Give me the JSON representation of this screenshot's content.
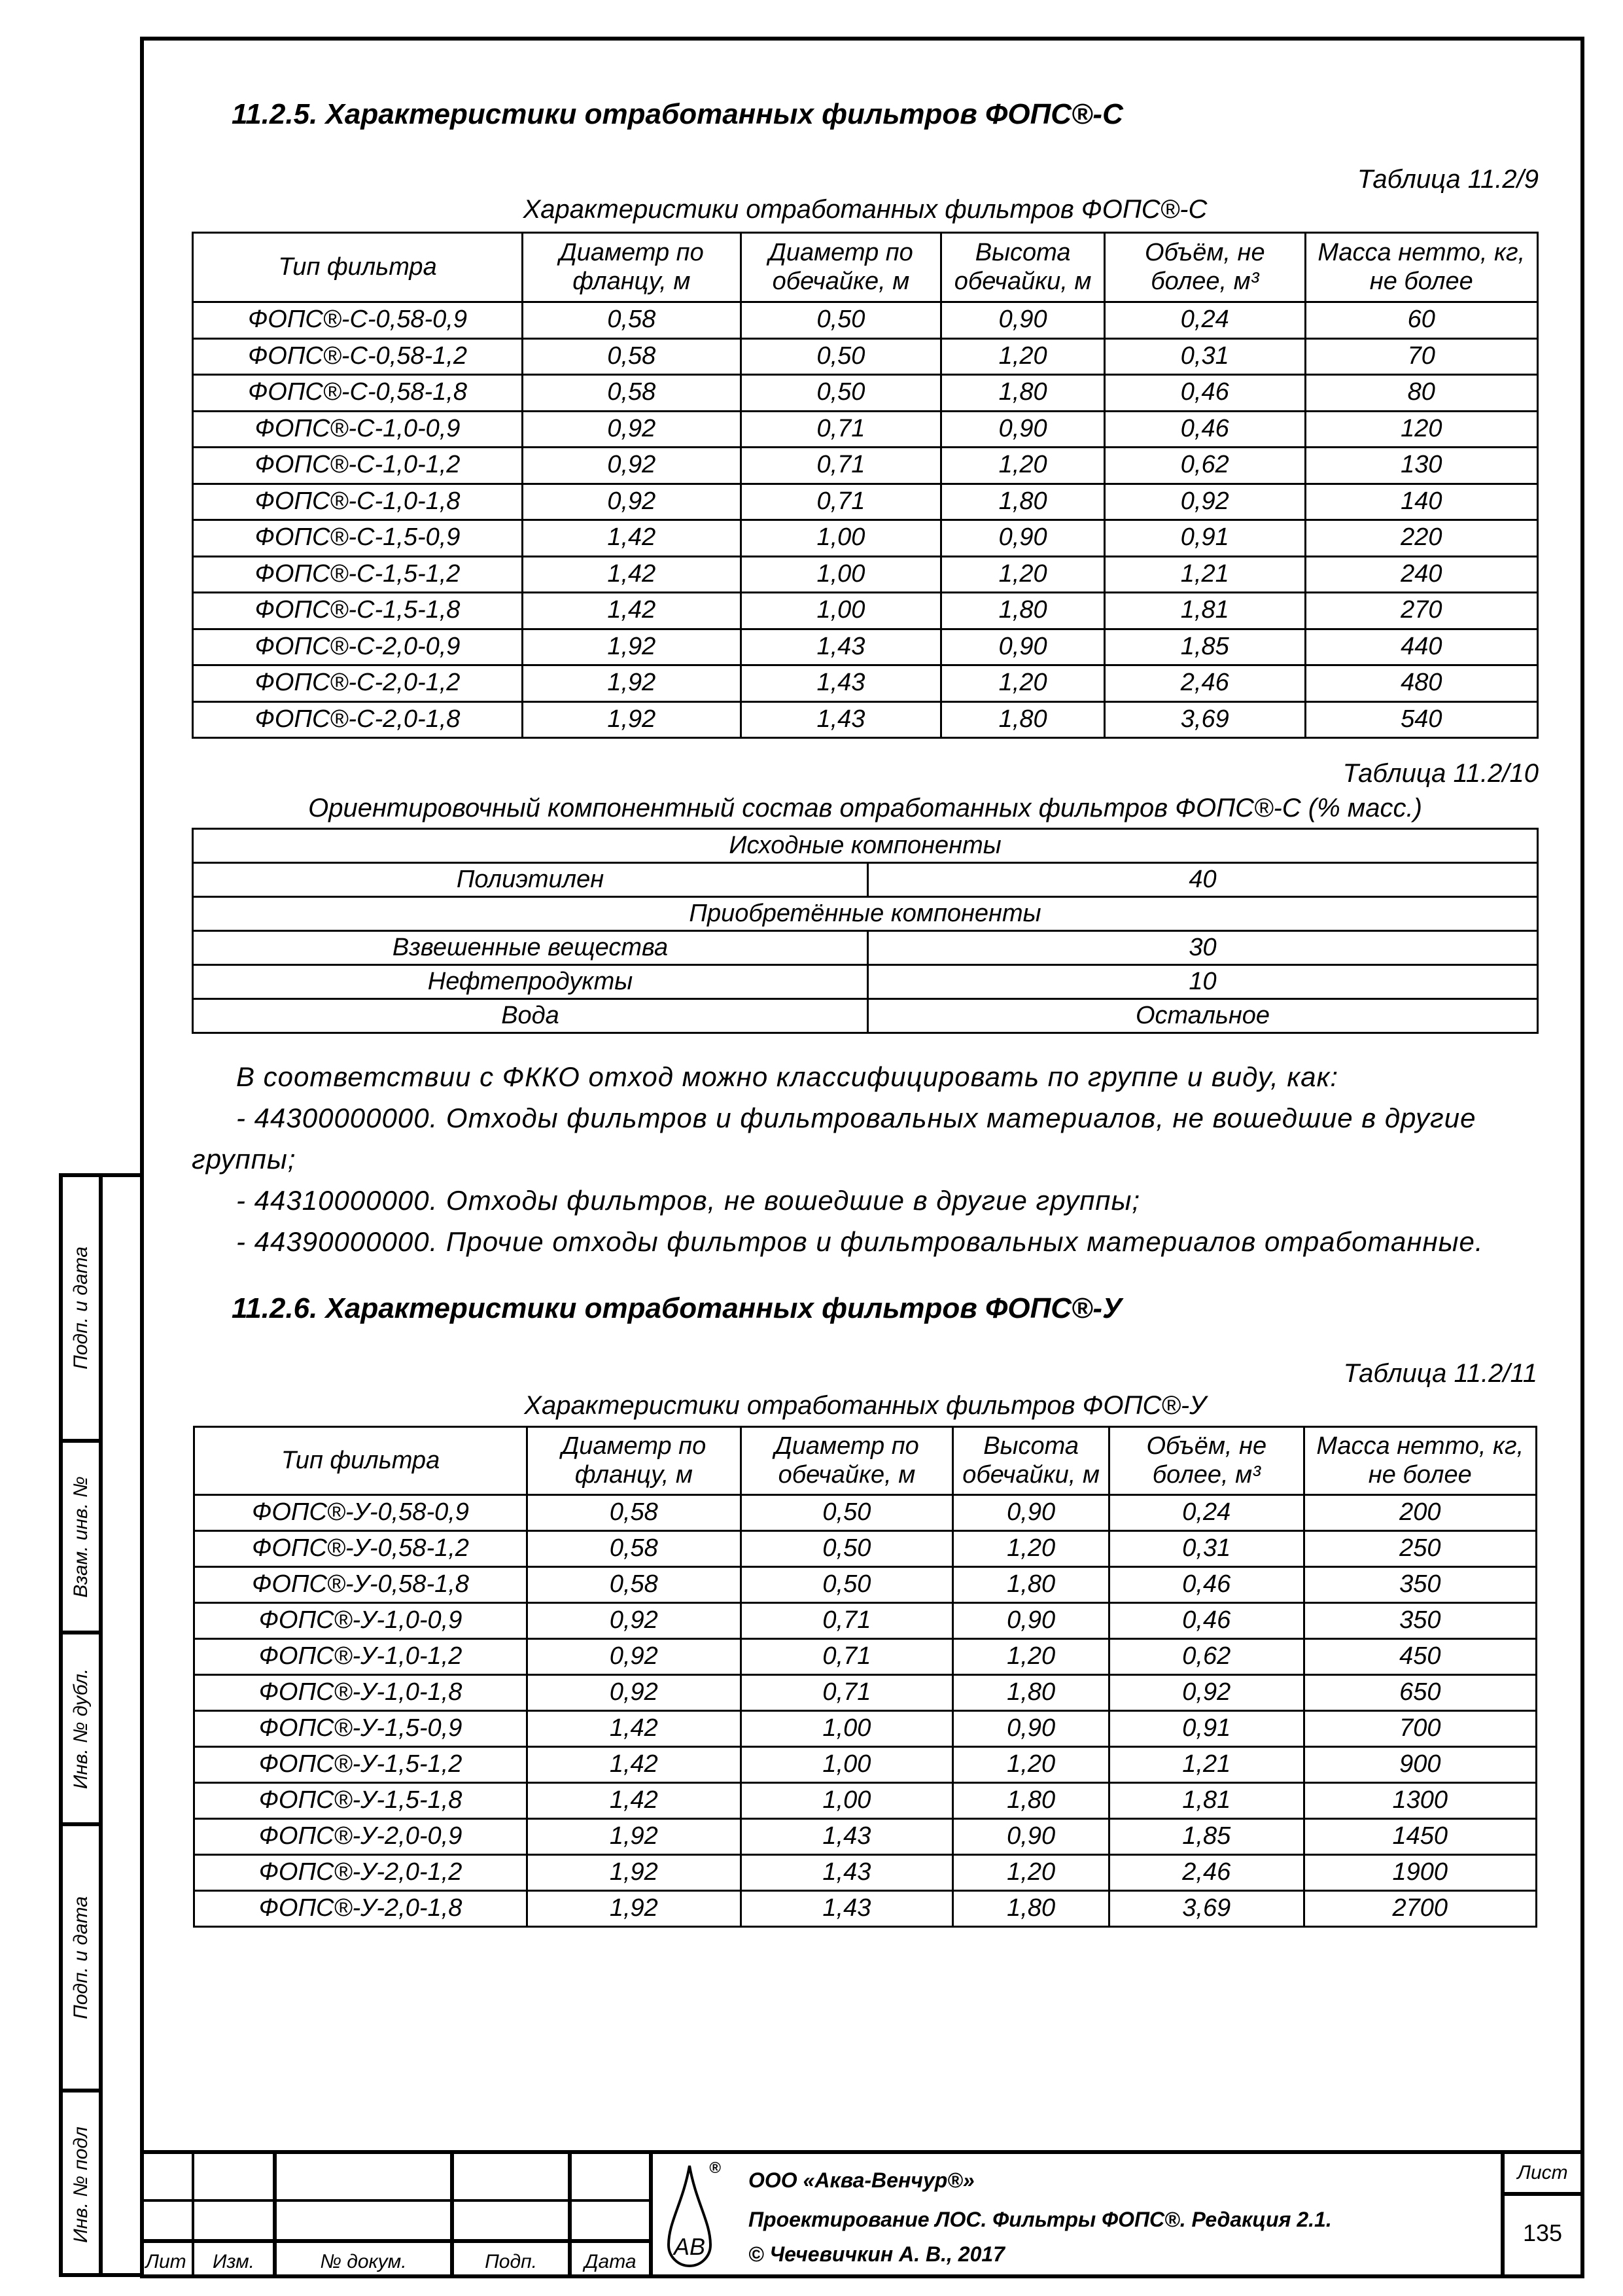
{
  "sidebar": [
    "Подп. и дата",
    "Взам. инв. №",
    "Инв. № дубл.",
    "Подп. и дата",
    "Инв. № подл"
  ],
  "section1": {
    "heading": "11.2.5. Характеристики отработанных фильтров ФОПС®-С",
    "table_label": "Таблица 11.2/9",
    "caption": "Характеристики отработанных фильтров ФОПС®-С",
    "headers": [
      "Тип фильтра",
      "Диаметр по фланцу, м",
      "Диаметр по обечайке, м",
      "Высота обечайки, м",
      "Объём, не более, м³",
      "Масса нетто, кг, не более"
    ],
    "rows": [
      [
        "ФОПС®-С-0,58-0,9",
        "0,58",
        "0,50",
        "0,90",
        "0,24",
        "60"
      ],
      [
        "ФОПС®-С-0,58-1,2",
        "0,58",
        "0,50",
        "1,20",
        "0,31",
        "70"
      ],
      [
        "ФОПС®-С-0,58-1,8",
        "0,58",
        "0,50",
        "1,80",
        "0,46",
        "80"
      ],
      [
        "ФОПС®-С-1,0-0,9",
        "0,92",
        "0,71",
        "0,90",
        "0,46",
        "120"
      ],
      [
        "ФОПС®-С-1,0-1,2",
        "0,92",
        "0,71",
        "1,20",
        "0,62",
        "130"
      ],
      [
        "ФОПС®-С-1,0-1,8",
        "0,92",
        "0,71",
        "1,80",
        "0,92",
        "140"
      ],
      [
        "ФОПС®-С-1,5-0,9",
        "1,42",
        "1,00",
        "0,90",
        "0,91",
        "220"
      ],
      [
        "ФОПС®-С-1,5-1,2",
        "1,42",
        "1,00",
        "1,20",
        "1,21",
        "240"
      ],
      [
        "ФОПС®-С-1,5-1,8",
        "1,42",
        "1,00",
        "1,80",
        "1,81",
        "270"
      ],
      [
        "ФОПС®-С-2,0-0,9",
        "1,92",
        "1,43",
        "0,90",
        "1,85",
        "440"
      ],
      [
        "ФОПС®-С-2,0-1,2",
        "1,92",
        "1,43",
        "1,20",
        "2,46",
        "480"
      ],
      [
        "ФОПС®-С-2,0-1,8",
        "1,92",
        "1,43",
        "1,80",
        "3,69",
        "540"
      ]
    ]
  },
  "composition": {
    "table_label": "Таблица 11.2/10",
    "caption": "Ориентировочный компонентный состав отработанных фильтров ФОПС®-С (% масс.)",
    "rows": [
      {
        "span": "Исходные компоненты"
      },
      {
        "name": "Полиэтилен",
        "value": "40"
      },
      {
        "span": "Приобретённые компоненты"
      },
      {
        "name": "Взвешенные вещества",
        "value": "30"
      },
      {
        "name": "Нефтепродукты",
        "value": "10"
      },
      {
        "name": "Вода",
        "value": "Остальное"
      }
    ]
  },
  "paragraph": [
    "В соответствии с ФККО отход можно классифицировать по группе и виду, как:",
    "- 44300000000. Отходы фильтров и фильтровальных материалов, не вошедшие в другие",
    "группы;",
    "- 44310000000. Отходы фильтров, не вошедшие в другие группы;",
    "- 44390000000. Прочие отходы фильтров и фильтровальных материалов отработанные."
  ],
  "section2": {
    "heading": "11.2.6. Характеристики отработанных фильтров ФОПС®-У",
    "table_label": "Таблица 11.2/11",
    "caption": "Характеристики отработанных фильтров ФОПС®-У",
    "headers": [
      "Тип фильтра",
      "Диаметр по фланцу, м",
      "Диаметр по обечайке, м",
      "Высота обечайки, м",
      "Объём, не более, м³",
      "Масса нетто, кг, не более"
    ],
    "rows": [
      [
        "ФОПС®-У-0,58-0,9",
        "0,58",
        "0,50",
        "0,90",
        "0,24",
        "200"
      ],
      [
        "ФОПС®-У-0,58-1,2",
        "0,58",
        "0,50",
        "1,20",
        "0,31",
        "250"
      ],
      [
        "ФОПС®-У-0,58-1,8",
        "0,58",
        "0,50",
        "1,80",
        "0,46",
        "350"
      ],
      [
        "ФОПС®-У-1,0-0,9",
        "0,92",
        "0,71",
        "0,90",
        "0,46",
        "350"
      ],
      [
        "ФОПС®-У-1,0-1,2",
        "0,92",
        "0,71",
        "1,20",
        "0,62",
        "450"
      ],
      [
        "ФОПС®-У-1,0-1,8",
        "0,92",
        "0,71",
        "1,80",
        "0,92",
        "650"
      ],
      [
        "ФОПС®-У-1,5-0,9",
        "1,42",
        "1,00",
        "0,90",
        "0,91",
        "700"
      ],
      [
        "ФОПС®-У-1,5-1,2",
        "1,42",
        "1,00",
        "1,20",
        "1,21",
        "900"
      ],
      [
        "ФОПС®-У-1,5-1,8",
        "1,42",
        "1,00",
        "1,80",
        "1,81",
        "1300"
      ],
      [
        "ФОПС®-У-2,0-0,9",
        "1,92",
        "1,43",
        "0,90",
        "1,85",
        "1450"
      ],
      [
        "ФОПС®-У-2,0-1,2",
        "1,92",
        "1,43",
        "1,20",
        "2,46",
        "1900"
      ],
      [
        "ФОПС®-У-2,0-1,8",
        "1,92",
        "1,43",
        "1,80",
        "3,69",
        "2700"
      ]
    ]
  },
  "title_block": {
    "columns": [
      "Лит",
      "Изм.",
      "№ докум.",
      "Подп.",
      "Дата"
    ],
    "logo": "AB",
    "logo_mark": "®",
    "org": "ООО «Аква-Венчур®»",
    "project": "Проектирование ЛОС. Фильтры ФОПС®. Редакция 2.1.",
    "copyright": "© Чечевичкин А. В., 2017",
    "sheet_label": "Лист",
    "sheet_number": "135"
  }
}
